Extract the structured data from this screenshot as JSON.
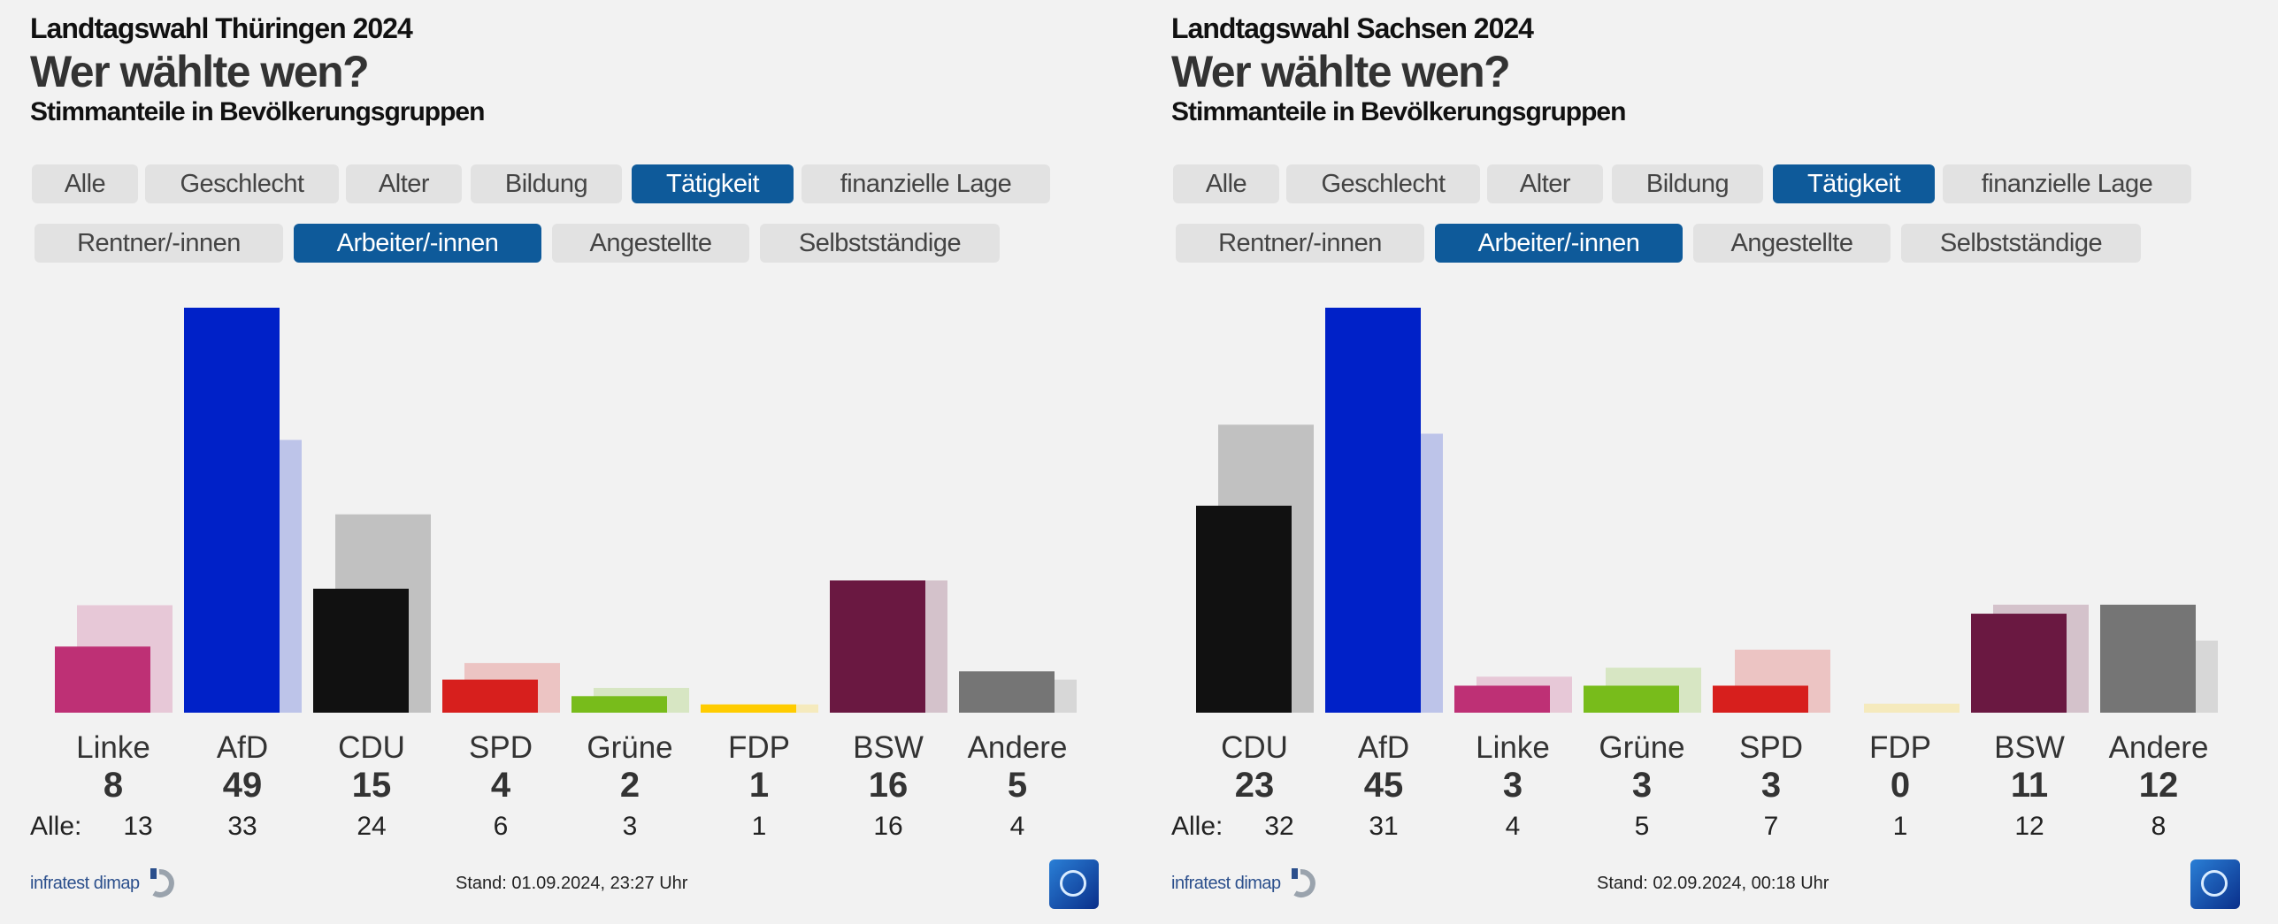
{
  "colors": {
    "background": "#f2f2f2",
    "active_button": "#0e5a9a",
    "inactive_button": "#e2e2e2"
  },
  "parties": {
    "Linke": "#be3075",
    "AfD": "#0021c8",
    "CDU": "#111111",
    "SPD": "#d71f1d",
    "Grüne": "#78bc1b",
    "FDP": "#ffcc00",
    "BSW": "#6a1841",
    "Andere": "#757575"
  },
  "panels": [
    {
      "kicker": "Landtagswahl Thüringen 2024",
      "title": "Wer wählte wen?",
      "subtitle": "Stimmanteile in Bevölkerungsgruppen",
      "tabs": [
        "Alle",
        "Geschlecht",
        "Alter",
        "Bildung",
        "Tätigkeit",
        "finanzielle Lage"
      ],
      "active_tab": "Tätigkeit",
      "subtabs": [
        "Rentner/-innen",
        "Arbeiter/-innen",
        "Angestellte",
        "Selbstständige"
      ],
      "active_subtab": "Arbeiter/-innen",
      "alle_label": "Alle:",
      "source": "infratest dimap",
      "stand": "Stand: 01.09.2024, 23:27 Uhr",
      "broadcaster_logo": "tagesschau"
    },
    {
      "kicker": "Landtagswahl Sachsen 2024",
      "title": "Wer wählte wen?",
      "subtitle": "Stimmanteile in Bevölkerungsgruppen",
      "tabs": [
        "Alle",
        "Geschlecht",
        "Alter",
        "Bildung",
        "Tätigkeit",
        "finanzielle Lage"
      ],
      "active_tab": "Tätigkeit",
      "subtabs": [
        "Rentner/-innen",
        "Arbeiter/-innen",
        "Angestellte",
        "Selbstständige"
      ],
      "active_subtab": "Arbeiter/-innen",
      "alle_label": "Alle:",
      "source": "infratest dimap",
      "stand": "Stand: 02.09.2024, 00:18 Uhr",
      "broadcaster_logo": "tagesschau"
    }
  ],
  "chart_data": [
    {
      "type": "bar",
      "title": "Landtagswahl Thüringen 2024",
      "categories": [
        "Linke",
        "AfD",
        "CDU",
        "SPD",
        "Grüne",
        "FDP",
        "BSW",
        "Andere"
      ],
      "series": [
        {
          "name": "Arbeiter/-innen",
          "values": [
            8,
            49,
            15,
            4,
            2,
            1,
            16,
            5
          ]
        },
        {
          "name": "Alle",
          "values": [
            13,
            33,
            24,
            6,
            3,
            1,
            16,
            4
          ]
        }
      ],
      "unit": "%",
      "grid": false
    },
    {
      "type": "bar",
      "title": "Landtagswahl Sachsen 2024",
      "categories": [
        "CDU",
        "AfD",
        "Linke",
        "Grüne",
        "SPD",
        "FDP",
        "BSW",
        "Andere"
      ],
      "series": [
        {
          "name": "Arbeiter/-innen",
          "values": [
            23,
            45,
            3,
            3,
            3,
            0,
            11,
            12
          ]
        },
        {
          "name": "Alle",
          "values": [
            32,
            31,
            4,
            5,
            7,
            1,
            12,
            8
          ]
        }
      ],
      "unit": "%",
      "grid": false
    }
  ]
}
